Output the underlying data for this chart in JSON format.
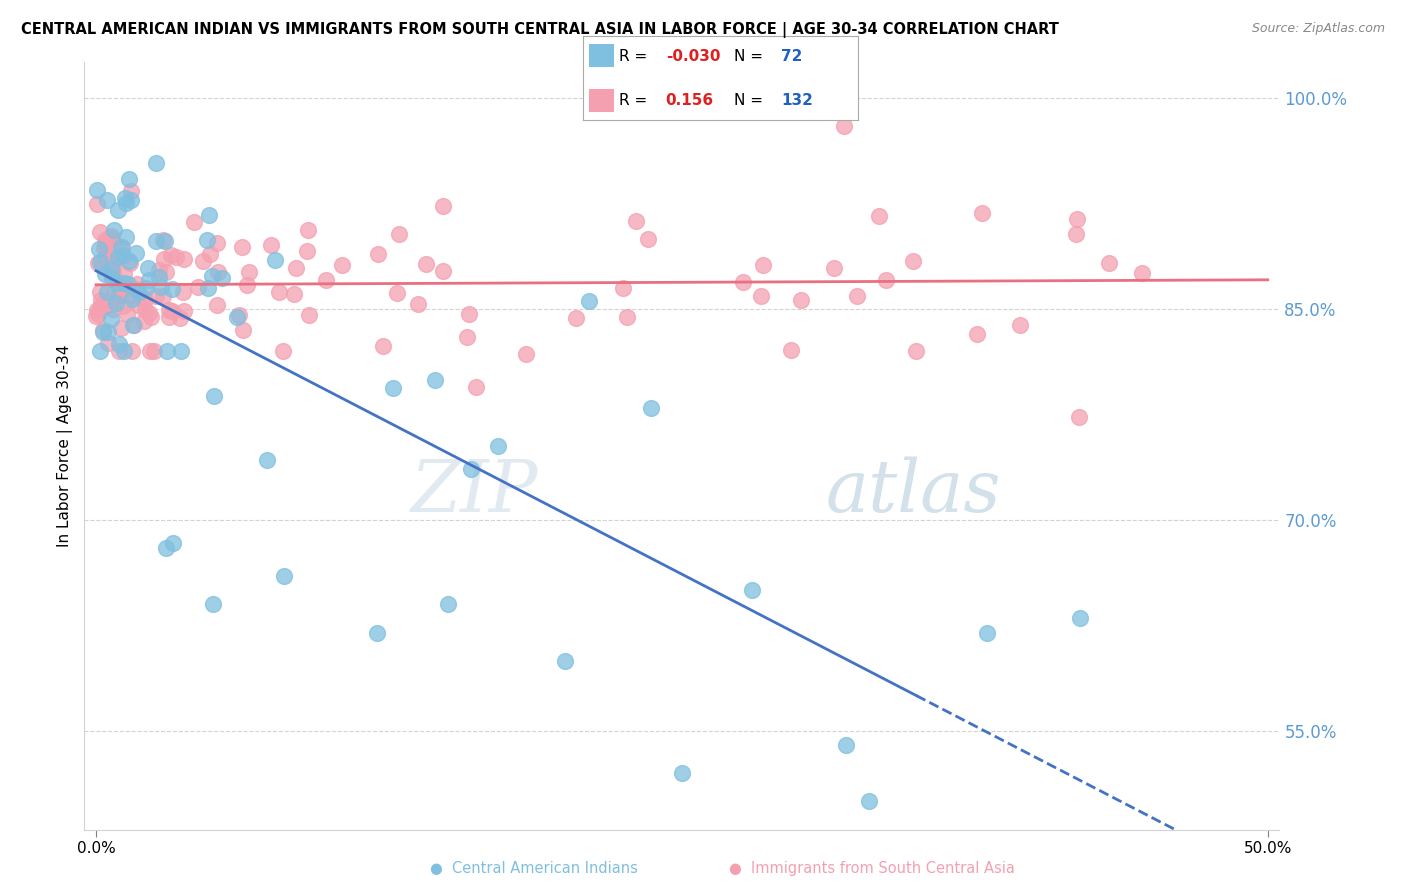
{
  "title": "CENTRAL AMERICAN INDIAN VS IMMIGRANTS FROM SOUTH CENTRAL ASIA IN LABOR FORCE | AGE 30-34 CORRELATION CHART",
  "source": "Source: ZipAtlas.com",
  "ylabel": "In Labor Force | Age 30-34",
  "ylim": [
    0.48,
    1.025
  ],
  "xlim": [
    -0.005,
    0.505
  ],
  "yticks": [
    0.55,
    0.7,
    0.85,
    1.0
  ],
  "ytick_labels": [
    "55.0%",
    "70.0%",
    "85.0%",
    "100.0%"
  ],
  "grid_lines": [
    0.55,
    0.7,
    0.85,
    1.0
  ],
  "legend_r_blue": "-0.030",
  "legend_n_blue": "72",
  "legend_r_pink": "0.156",
  "legend_n_pink": "132",
  "blue_color": "#7fbfdf",
  "pink_color": "#f4a0b0",
  "blue_face": "none",
  "pink_face": "none",
  "blue_line_color": "#4472c4",
  "pink_line_color": "#e87080",
  "watermark_zip": "ZIP",
  "watermark_atlas": "atlas",
  "blue_r": -0.03,
  "pink_r": 0.156,
  "blue_n": 72,
  "pink_n": 132
}
